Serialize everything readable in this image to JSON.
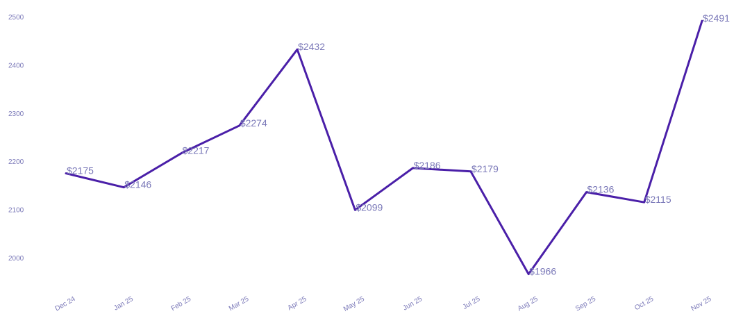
{
  "chart_data": {
    "type": "line",
    "title": "",
    "xlabel": "",
    "ylabel": "",
    "categories": [
      "Dec 24",
      "Jan 25",
      "Feb 25",
      "Mar 25",
      "Apr 25",
      "May 25",
      "Jun 25",
      "Jul 25",
      "Aug 25",
      "Sep 25",
      "Oct 25",
      "Nov 25"
    ],
    "series": [
      {
        "values": [
          2175,
          2146,
          2217,
          2274,
          2432,
          2099,
          2186,
          2179,
          1966,
          2136,
          2115,
          2491
        ],
        "data_labels": [
          "$2175",
          "$2146",
          "$2217",
          "$2274",
          "$2432",
          "$2099",
          "$2186",
          "$2179",
          "$1966",
          "$2136",
          "$2115",
          "$2491"
        ]
      }
    ],
    "y_ticks": [
      "2000",
      "2100",
      "2200",
      "2300",
      "2400",
      "2500"
    ],
    "ylim": [
      1940,
      2510
    ],
    "grid": false,
    "legend": "none",
    "colors": {
      "line": "#4a1fa8",
      "text": "#7a78b8"
    }
  }
}
